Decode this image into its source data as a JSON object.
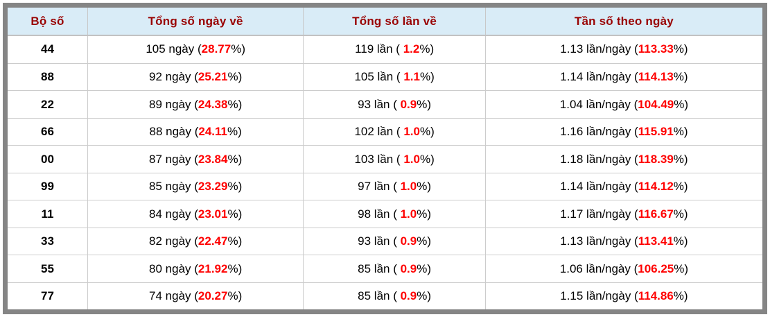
{
  "colors": {
    "frame_border": "#858585",
    "header_bg": "#d9ecf7",
    "header_text": "#990000",
    "highlight_red": "#ff0000",
    "grid_line": "#cccccc",
    "body_text": "#000000"
  },
  "chart_data": {
    "type": "table",
    "columns": [
      "Bộ số",
      "Tổng số ngày về",
      "Tổng số lần về",
      "Tần số theo ngày"
    ],
    "cell_formats": {
      "days": "{n} ngày ({p}%)",
      "times": "{n} lần ( {p}%)",
      "freq": "{n} lần/ngày ({p}%)"
    },
    "rows": [
      {
        "set": "44",
        "days": "105",
        "days_pct": "28.77",
        "times": "119",
        "times_pct": "1.2",
        "freq_per_day": "1.13",
        "freq_pct": "113.33"
      },
      {
        "set": "88",
        "days": "92",
        "days_pct": "25.21",
        "times": "105",
        "times_pct": "1.1",
        "freq_per_day": "1.14",
        "freq_pct": "114.13"
      },
      {
        "set": "22",
        "days": "89",
        "days_pct": "24.38",
        "times": "93",
        "times_pct": "0.9",
        "freq_per_day": "1.04",
        "freq_pct": "104.49"
      },
      {
        "set": "66",
        "days": "88",
        "days_pct": "24.11",
        "times": "102",
        "times_pct": "1.0",
        "freq_per_day": "1.16",
        "freq_pct": "115.91"
      },
      {
        "set": "00",
        "days": "87",
        "days_pct": "23.84",
        "times": "103",
        "times_pct": "1.0",
        "freq_per_day": "1.18",
        "freq_pct": "118.39"
      },
      {
        "set": "99",
        "days": "85",
        "days_pct": "23.29",
        "times": "97",
        "times_pct": "1.0",
        "freq_per_day": "1.14",
        "freq_pct": "114.12"
      },
      {
        "set": "11",
        "days": "84",
        "days_pct": "23.01",
        "times": "98",
        "times_pct": "1.0",
        "freq_per_day": "1.17",
        "freq_pct": "116.67"
      },
      {
        "set": "33",
        "days": "82",
        "days_pct": "22.47",
        "times": "93",
        "times_pct": "0.9",
        "freq_per_day": "1.13",
        "freq_pct": "113.41"
      },
      {
        "set": "55",
        "days": "80",
        "days_pct": "21.92",
        "times": "85",
        "times_pct": "0.9",
        "freq_per_day": "1.06",
        "freq_pct": "106.25"
      },
      {
        "set": "77",
        "days": "74",
        "days_pct": "20.27",
        "times": "85",
        "times_pct": "0.9",
        "freq_per_day": "1.15",
        "freq_pct": "114.86"
      }
    ]
  }
}
